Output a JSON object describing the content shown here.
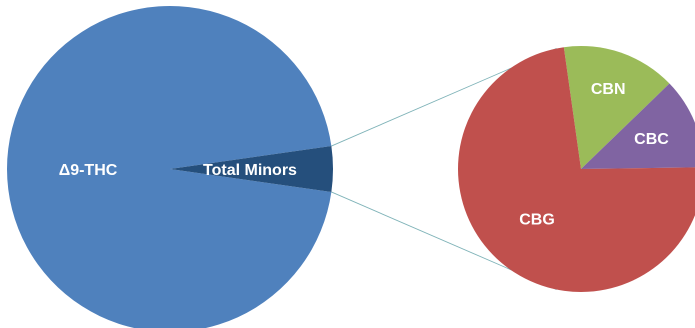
{
  "chart_data": {
    "type": "pie",
    "subtype": "pie-of-pie",
    "title": "",
    "main_pie": {
      "slices": [
        {
          "label": "Δ9-THC",
          "value": 95.5,
          "color": "#4F81BD"
        },
        {
          "label": "Total Minors",
          "value": 4.5,
          "color": "#254F7C"
        }
      ]
    },
    "secondary_pie": {
      "breakdown_of": "Total Minors",
      "slices": [
        {
          "label": "CBG",
          "value": 73,
          "color": "#C0504D"
        },
        {
          "label": "CBN",
          "value": 15,
          "color": "#9BBB59"
        },
        {
          "label": "CBC",
          "value": 12,
          "color": "#8064A2"
        }
      ]
    },
    "connector_color": "#7FB3B8",
    "legend": "none"
  }
}
